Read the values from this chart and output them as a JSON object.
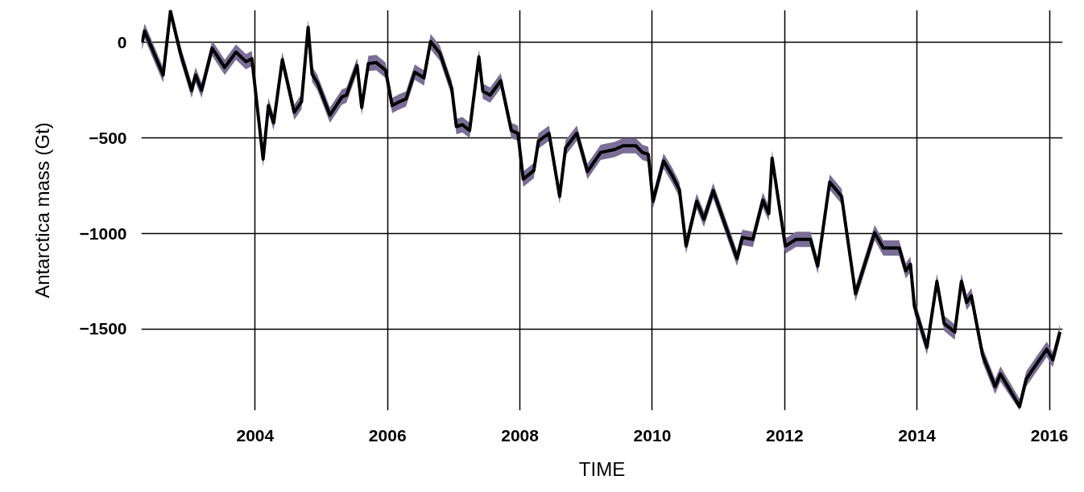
{
  "chart_data": {
    "type": "line",
    "xlabel": "TIME",
    "ylabel": "Antarctica mass (Gt)",
    "xlim": [
      2002.28,
      2016.2
    ],
    "ylim": [
      -1925,
      170
    ],
    "xticks": [
      2004,
      2006,
      2008,
      2010,
      2012,
      2014,
      2016
    ],
    "yticks": [
      -1500,
      -1000,
      -500,
      0
    ],
    "grid": true,
    "line_style": "solid",
    "marker": "none",
    "x": [
      2002.29,
      2002.33,
      2002.61,
      2002.72,
      2002.87,
      2003.04,
      2003.1,
      2003.19,
      2003.35,
      2003.54,
      2003.71,
      2003.86,
      2003.95,
      2004.12,
      2004.2,
      2004.28,
      2004.41,
      2004.59,
      2004.7,
      2004.8,
      2004.86,
      2004.94,
      2005.13,
      2005.31,
      2005.38,
      2005.54,
      2005.61,
      2005.71,
      2005.83,
      2005.97,
      2006.07,
      2006.18,
      2006.28,
      2006.41,
      2006.55,
      2006.65,
      2006.79,
      2006.97,
      2007.04,
      2007.13,
      2007.24,
      2007.38,
      2007.44,
      2007.55,
      2007.71,
      2007.87,
      2007.97,
      2008.05,
      2008.21,
      2008.28,
      2008.44,
      2008.6,
      2008.69,
      2008.86,
      2009.02,
      2009.22,
      2009.43,
      2009.56,
      2009.75,
      2009.85,
      2009.94,
      2010.01,
      2010.17,
      2010.3,
      2010.41,
      2010.51,
      2010.67,
      2010.78,
      2010.92,
      2011.28,
      2011.36,
      2011.52,
      2011.67,
      2011.76,
      2011.81,
      2012.01,
      2012.17,
      2012.39,
      2012.5,
      2012.68,
      2012.86,
      2013.07,
      2013.36,
      2013.49,
      2013.73,
      2013.83,
      2013.9,
      2013.96,
      2014.15,
      2014.3,
      2014.41,
      2014.57,
      2014.67,
      2014.75,
      2014.82,
      2014.99,
      2015.18,
      2015.26,
      2015.55,
      2015.65,
      2015.96,
      2016.05,
      2016.16
    ],
    "series": [
      {
        "color": "#000000",
        "values": [
          0,
          60,
          -170,
          165,
          -55,
          -250,
          -170,
          -250,
          -30,
          -130,
          -50,
          -100,
          -85,
          -610,
          -330,
          -420,
          -90,
          -365,
          -310,
          80,
          -165,
          -210,
          -380,
          -285,
          -275,
          -120,
          -340,
          -110,
          -105,
          -145,
          -330,
          -310,
          -295,
          -155,
          -185,
          5,
          -55,
          -240,
          -440,
          -430,
          -460,
          -75,
          -255,
          -275,
          -200,
          -460,
          -475,
          -715,
          -670,
          -515,
          -475,
          -805,
          -550,
          -475,
          -675,
          -575,
          -560,
          -540,
          -540,
          -575,
          -585,
          -830,
          -620,
          -695,
          -770,
          -1065,
          -830,
          -925,
          -775,
          -1130,
          -1020,
          -1030,
          -825,
          -895,
          -605,
          -1065,
          -1030,
          -1030,
          -1170,
          -730,
          -805,
          -1315,
          -995,
          -1075,
          -1075,
          -1195,
          -1160,
          -1380,
          -1595,
          -1250,
          -1470,
          -1515,
          -1250,
          -1360,
          -1325,
          -1635,
          -1800,
          -1735,
          -1905,
          -1760,
          -1605,
          -1660,
          -1515
        ],
        "lower": [
          -40,
          20,
          -210,
          125,
          -95,
          -290,
          -210,
          -290,
          -70,
          -170,
          -90,
          -140,
          -125,
          -650,
          -370,
          -460,
          -130,
          -405,
          -350,
          40,
          -205,
          -250,
          -420,
          -325,
          -315,
          -160,
          -380,
          -150,
          -145,
          -185,
          -370,
          -350,
          -335,
          -195,
          -225,
          -35,
          -95,
          -280,
          -480,
          -470,
          -500,
          -115,
          -295,
          -315,
          -240,
          -500,
          -515,
          -755,
          -710,
          -555,
          -515,
          -845,
          -590,
          -515,
          -715,
          -615,
          -600,
          -580,
          -580,
          -615,
          -625,
          -870,
          -660,
          -735,
          -810,
          -1105,
          -870,
          -965,
          -815,
          -1170,
          -1060,
          -1070,
          -865,
          -935,
          -645,
          -1105,
          -1070,
          -1070,
          -1210,
          -770,
          -845,
          -1355,
          -1035,
          -1115,
          -1115,
          -1235,
          -1200,
          -1420,
          -1635,
          -1290,
          -1510,
          -1555,
          -1290,
          -1400,
          -1365,
          -1675,
          -1840,
          -1775,
          -1925,
          -1800,
          -1645,
          -1700,
          -1555
        ],
        "upper": [
          40,
          100,
          -130,
          170,
          -15,
          -210,
          -130,
          -210,
          10,
          -90,
          -10,
          -60,
          -45,
          -570,
          -290,
          -380,
          -50,
          -325,
          -270,
          120,
          -125,
          -170,
          -340,
          -245,
          -235,
          -80,
          -300,
          -70,
          -65,
          -105,
          -290,
          -270,
          -255,
          -115,
          -145,
          45,
          -15,
          -200,
          -400,
          -390,
          -420,
          -35,
          -215,
          -235,
          -160,
          -420,
          -435,
          -675,
          -630,
          -475,
          -435,
          -765,
          -510,
          -435,
          -635,
          -535,
          -520,
          -500,
          -500,
          -535,
          -545,
          -790,
          -580,
          -655,
          -730,
          -1025,
          -790,
          -885,
          -735,
          -1090,
          -980,
          -990,
          -785,
          -855,
          -565,
          -1025,
          -990,
          -990,
          -1130,
          -690,
          -765,
          -1275,
          -955,
          -1035,
          -1035,
          -1155,
          -1120,
          -1340,
          -1555,
          -1210,
          -1430,
          -1475,
          -1210,
          -1320,
          -1285,
          -1595,
          -1760,
          -1695,
          -1865,
          -1720,
          -1565,
          -1620,
          -1475
        ]
      }
    ]
  }
}
